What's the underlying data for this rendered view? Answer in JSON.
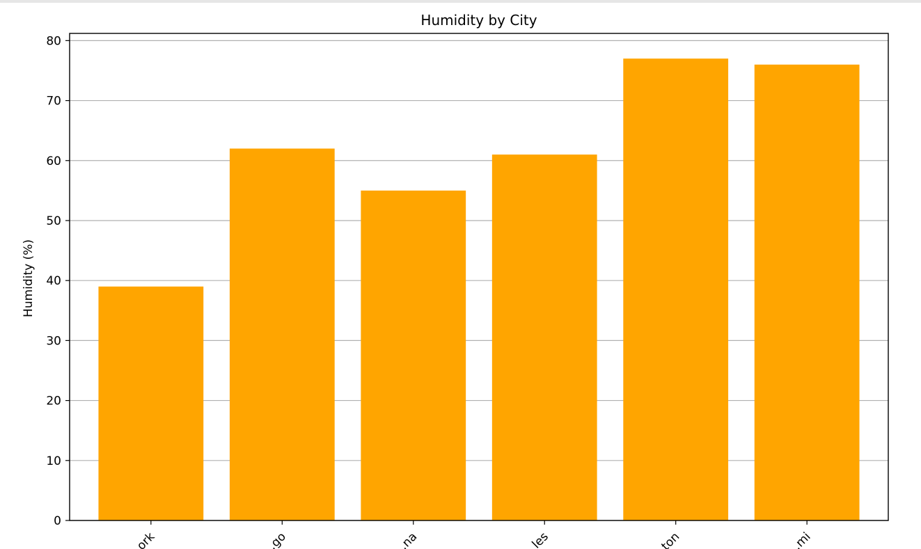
{
  "chart_data": {
    "type": "bar",
    "title": "Humidity by City",
    "xlabel": "",
    "ylabel": "Humidity (%)",
    "categories": [
      "…ork",
      "…go",
      "…na",
      "…les",
      "…ton",
      "…mi"
    ],
    "values": [
      39,
      62,
      55,
      61,
      77,
      76
    ],
    "ylim": [
      0,
      80
    ],
    "yticks": [
      "0",
      "10",
      "20",
      "30",
      "40",
      "50",
      "60",
      "70",
      "80"
    ],
    "grid": "horizontal",
    "bar_color": "#FFA500",
    "grid_color": "#b0b0b0",
    "axis_color": "#000000"
  }
}
